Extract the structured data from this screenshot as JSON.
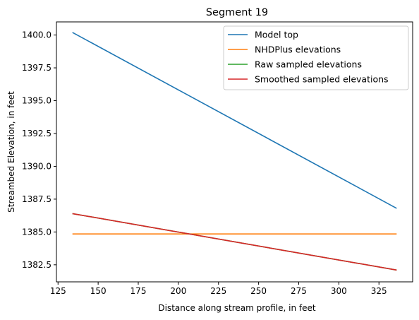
{
  "chart_data": {
    "type": "line",
    "title": "Segment 19",
    "xlabel": "Distance along stream profile, in feet",
    "ylabel": "Streambed Elevation, in feet",
    "xlim": [
      124,
      346
    ],
    "ylim": [
      1381.2,
      1401.0
    ],
    "xticks": [
      125,
      150,
      175,
      200,
      225,
      250,
      275,
      300,
      325
    ],
    "xtick_labels": [
      "125",
      "150",
      "175",
      "200",
      "225",
      "250",
      "275",
      "300",
      "325"
    ],
    "yticks": [
      1382.5,
      1385.0,
      1387.5,
      1390.0,
      1392.5,
      1395.0,
      1397.5,
      1400.0
    ],
    "ytick_labels": [
      "1382.5",
      "1385.0",
      "1387.5",
      "1390.0",
      "1392.5",
      "1395.0",
      "1397.5",
      "1400.0"
    ],
    "grid": false,
    "legend_position": "top-right",
    "series": [
      {
        "name": "Model top",
        "color": "#1f77b4",
        "x": [
          134,
          336
        ],
        "y": [
          1400.2,
          1386.8
        ]
      },
      {
        "name": "NHDPlus elevations",
        "color": "#ff7f0e",
        "x": [
          134,
          336
        ],
        "y": [
          1384.85,
          1384.85
        ]
      },
      {
        "name": "Raw sampled elevations",
        "color": "#2ca02c",
        "x": [
          134,
          336
        ],
        "y": [
          1386.4,
          1382.1
        ]
      },
      {
        "name": "Smoothed sampled elevations",
        "color": "#d62728",
        "x": [
          134,
          336
        ],
        "y": [
          1386.4,
          1382.1
        ]
      }
    ]
  }
}
